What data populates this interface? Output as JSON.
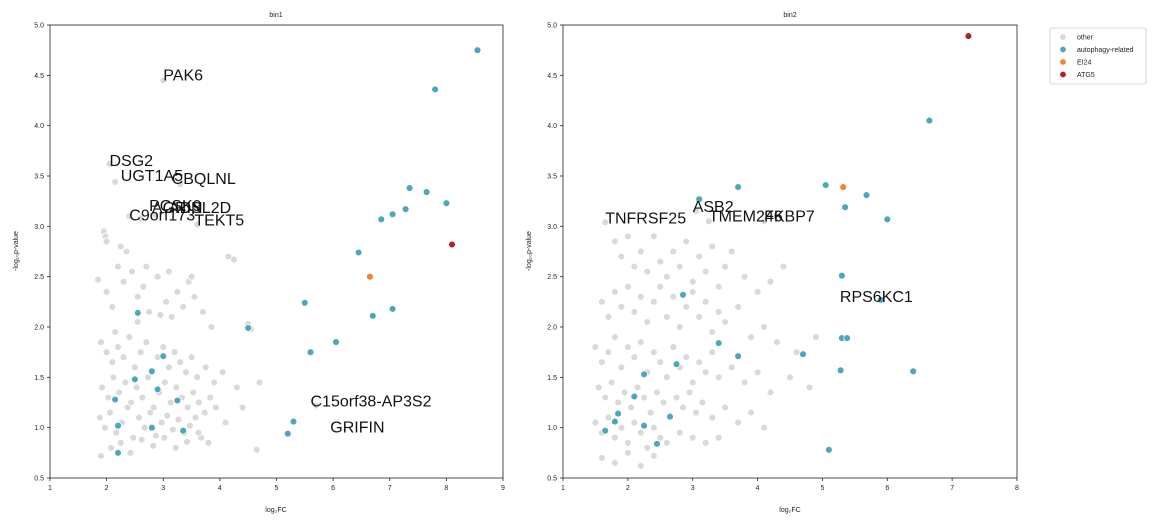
{
  "legend": {
    "entries": [
      {
        "label": "other",
        "color": "#d9d9d9"
      },
      {
        "label": "autophagy-related",
        "color": "#4ea6bd"
      },
      {
        "label": "EI24",
        "color": "#ee8534"
      },
      {
        "label": "ATG5",
        "color": "#b12222"
      }
    ]
  },
  "chart_data": [
    {
      "type": "scatter",
      "title": "bin1",
      "xlabel": "log₂FC",
      "ylabel": "-log₁₀p-value",
      "xlim": [
        1,
        9
      ],
      "ylim": [
        0.5,
        5.0
      ],
      "xticks": [
        1,
        2,
        3,
        4,
        5,
        6,
        7,
        8,
        9
      ],
      "yticks": [
        0.5,
        1.0,
        1.5,
        2.0,
        2.5,
        3.0,
        3.5,
        4.0,
        4.5,
        5.0
      ],
      "grid": false,
      "annotations": [
        {
          "text": "PAK6",
          "x": 3.0,
          "y": 4.45
        },
        {
          "text": "DSG2",
          "x": 2.05,
          "y": 3.6
        },
        {
          "text": "UGT1A5",
          "x": 2.25,
          "y": 3.45
        },
        {
          "text": "CBQLNL",
          "x": 3.15,
          "y": 3.42
        },
        {
          "text": "PCSK9",
          "x": 2.75,
          "y": 3.15
        },
        {
          "text": "AGRIN",
          "x": 2.8,
          "y": 3.13
        },
        {
          "text": "ADSL2D",
          "x": 3.1,
          "y": 3.13
        },
        {
          "text": "C9orf173",
          "x": 2.4,
          "y": 3.06
        },
        {
          "text": "TEKT5",
          "x": 3.55,
          "y": 3.01
        },
        {
          "text": "C15orf38-AP3S2",
          "x": 5.6,
          "y": 1.21
        },
        {
          "text": "GRIFIN",
          "x": 5.95,
          "y": 0.95
        }
      ],
      "series": [
        {
          "name": "other",
          "color": "#d9d9d9",
          "x": [
            3.0,
            2.05,
            2.15,
            2.4,
            2.85,
            3.3,
            1.95,
            1.98,
            2.25,
            2.6,
            3.6,
            4.15,
            4.25,
            4.5,
            4.55,
            5.7,
            1.85,
            2.0,
            2.1,
            2.2,
            2.3,
            2.45,
            2.55,
            2.65,
            2.75,
            2.9,
            3.05,
            3.15,
            3.25,
            3.35,
            3.45,
            3.55,
            3.7,
            3.85,
            1.9,
            2.0,
            2.1,
            2.2,
            2.3,
            2.4,
            2.5,
            2.6,
            2.7,
            2.8,
            2.9,
            3.0,
            3.1,
            3.2,
            3.3,
            3.4,
            3.5,
            3.6,
            3.75,
            3.9,
            4.05,
            4.3,
            4.7,
            1.92,
            2.03,
            2.12,
            2.22,
            2.33,
            2.43,
            2.53,
            2.63,
            2.73,
            2.83,
            2.93,
            3.03,
            3.13,
            3.23,
            3.33,
            3.43,
            3.53,
            3.63,
            3.73,
            3.83,
            3.93,
            1.88,
            1.97,
            2.06,
            2.17,
            2.27,
            2.37,
            2.47,
            2.57,
            2.67,
            2.77,
            2.87,
            2.97,
            3.07,
            3.17,
            3.27,
            3.37,
            3.47,
            3.57,
            3.67,
            4.1,
            4.4,
            4.65,
            1.9,
            2.08,
            2.25,
            2.42,
            2.62,
            2.82,
            3.02,
            3.22,
            3.42,
            3.62,
            3.8,
            2.0,
            2.35,
            2.7,
            3.1,
            3.5,
            2.15,
            2.55,
            2.95
          ],
          "y": [
            4.45,
            3.62,
            3.44,
            3.1,
            3.12,
            3.42,
            2.95,
            2.9,
            2.8,
            3.08,
            3.02,
            2.7,
            2.67,
            2.03,
            1.98,
            1.22,
            2.47,
            2.35,
            2.2,
            2.6,
            2.45,
            2.55,
            2.3,
            2.4,
            2.15,
            2.5,
            2.25,
            2.1,
            2.35,
            2.2,
            2.45,
            2.3,
            2.15,
            2.0,
            1.85,
            1.75,
            1.65,
            1.8,
            1.7,
            1.9,
            1.6,
            1.75,
            1.85,
            1.55,
            1.7,
            1.8,
            1.6,
            1.75,
            1.65,
            1.55,
            1.7,
            1.5,
            1.6,
            1.45,
            1.55,
            1.4,
            1.45,
            1.4,
            1.3,
            1.5,
            1.35,
            1.45,
            1.25,
            1.4,
            1.3,
            1.5,
            1.2,
            1.35,
            1.45,
            1.25,
            1.4,
            1.3,
            1.2,
            1.35,
            1.25,
            1.15,
            1.3,
            1.2,
            1.1,
            1.0,
            1.15,
            0.95,
            1.05,
            1.2,
            0.9,
            1.1,
            1.0,
            1.15,
            0.92,
            1.05,
            1.12,
            0.98,
            1.08,
            0.95,
            1.02,
            1.1,
            0.9,
            1.05,
            1.2,
            0.78,
            0.72,
            0.8,
            0.85,
            0.75,
            0.88,
            0.82,
            0.9,
            0.8,
            0.86,
            0.95,
            0.85,
            2.85,
            2.75,
            2.6,
            2.55,
            2.5,
            1.95,
            2.05,
            2.12
          ]
        },
        {
          "name": "autophagy-related",
          "color": "#4ea6bd",
          "x": [
            8.55,
            7.8,
            7.35,
            7.65,
            8.0,
            6.85,
            7.05,
            7.28,
            6.45,
            7.05,
            6.7,
            5.5,
            6.05,
            5.6,
            4.5,
            2.55,
            3.0,
            2.8,
            2.5,
            2.9,
            3.25,
            2.15,
            2.2,
            2.8,
            3.35,
            2.2,
            5.3,
            5.2
          ],
          "y": [
            4.75,
            4.36,
            3.38,
            3.34,
            3.23,
            3.07,
            3.12,
            3.17,
            2.74,
            2.18,
            2.11,
            2.24,
            1.85,
            1.75,
            1.99,
            2.14,
            1.71,
            1.56,
            1.48,
            1.38,
            1.27,
            1.28,
            1.02,
            1.0,
            0.97,
            0.75,
            1.06,
            0.94
          ]
        },
        {
          "name": "EI24",
          "color": "#ee8534",
          "x": [
            6.65
          ],
          "y": [
            2.5
          ]
        },
        {
          "name": "ATG5",
          "color": "#b12222",
          "x": [
            8.1
          ],
          "y": [
            2.82
          ]
        }
      ]
    },
    {
      "type": "scatter",
      "title": "bin2",
      "xlabel": "log₂FC",
      "ylabel": "-log₁₀p-value",
      "xlim": [
        1,
        8
      ],
      "ylim": [
        0.5,
        5.0
      ],
      "xticks": [
        1,
        2,
        3,
        4,
        5,
        6,
        7,
        8
      ],
      "yticks": [
        0.5,
        1.0,
        1.5,
        2.0,
        2.5,
        3.0,
        3.5,
        4.0,
        4.5,
        5.0
      ],
      "grid": false,
      "annotations": [
        {
          "text": "TNFRSF25",
          "x": 1.65,
          "y": 3.03
        },
        {
          "text": "ASB2",
          "x": 3.0,
          "y": 3.14
        },
        {
          "text": "TMEM246",
          "x": 3.25,
          "y": 3.05
        },
        {
          "text": "FKBP7",
          "x": 4.1,
          "y": 3.05
        },
        {
          "text": "RPS6KC1",
          "x": 5.27,
          "y": 2.25
        }
      ],
      "series": [
        {
          "name": "other",
          "color": "#d9d9d9",
          "x": [
            1.65,
            3.05,
            3.25,
            4.1,
            5.9,
            1.8,
            1.9,
            2.0,
            2.1,
            2.2,
            2.3,
            2.4,
            2.5,
            2.6,
            2.7,
            2.8,
            2.9,
            3.0,
            3.1,
            3.2,
            3.3,
            3.4,
            3.5,
            3.6,
            3.8,
            4.0,
            4.2,
            4.4,
            1.6,
            1.7,
            1.8,
            1.9,
            2.0,
            2.1,
            2.2,
            2.3,
            2.4,
            2.5,
            2.6,
            2.7,
            2.8,
            2.9,
            3.0,
            3.1,
            3.2,
            3.3,
            3.4,
            3.5,
            3.7,
            3.9,
            4.1,
            4.3,
            4.6,
            4.9,
            1.5,
            1.6,
            1.7,
            1.8,
            1.9,
            2.0,
            2.1,
            2.2,
            2.3,
            2.4,
            2.5,
            2.6,
            2.7,
            2.8,
            2.9,
            3.0,
            3.1,
            3.2,
            3.3,
            3.4,
            3.6,
            3.8,
            4.0,
            4.2,
            4.5,
            4.8,
            1.55,
            1.65,
            1.75,
            1.85,
            1.95,
            2.05,
            2.15,
            2.25,
            2.35,
            2.45,
            2.55,
            2.65,
            2.75,
            2.85,
            2.95,
            3.05,
            3.15,
            3.3,
            3.5,
            3.7,
            3.9,
            4.1,
            1.5,
            1.6,
            1.7,
            1.8,
            1.9,
            2.0,
            2.1,
            2.2,
            2.3,
            2.4,
            2.5,
            2.6,
            2.8,
            3.0,
            3.2,
            3.4,
            1.6,
            1.8,
            2.0,
            2.2,
            2.4
          ],
          "y": [
            3.04,
            3.15,
            3.05,
            3.05,
            2.27,
            2.85,
            2.7,
            2.9,
            2.6,
            2.75,
            2.55,
            2.9,
            2.65,
            2.5,
            2.75,
            2.6,
            2.85,
            2.45,
            2.7,
            2.55,
            2.8,
            2.4,
            2.6,
            2.75,
            2.5,
            2.35,
            2.45,
            2.6,
            2.25,
            2.1,
            2.35,
            2.2,
            2.4,
            2.15,
            2.3,
            2.05,
            2.25,
            2.4,
            2.1,
            2.3,
            2.0,
            2.2,
            2.35,
            2.1,
            2.25,
            1.95,
            2.15,
            2.05,
            2.2,
            1.9,
            2.0,
            1.85,
            1.75,
            1.9,
            1.8,
            1.65,
            1.75,
            1.9,
            1.6,
            1.8,
            1.7,
            1.85,
            1.55,
            1.75,
            1.65,
            1.5,
            1.8,
            1.6,
            1.7,
            1.45,
            1.65,
            1.55,
            1.75,
            1.5,
            1.6,
            1.45,
            1.55,
            1.35,
            1.5,
            1.4,
            1.4,
            1.3,
            1.45,
            1.25,
            1.35,
            1.2,
            1.4,
            1.3,
            1.15,
            1.35,
            1.25,
            1.1,
            1.3,
            1.2,
            1.35,
            1.15,
            1.25,
            1.1,
            1.2,
            1.05,
            1.15,
            1.0,
            1.05,
            0.95,
            1.1,
            0.9,
            1.0,
            0.85,
            1.05,
            0.95,
            0.8,
            1.0,
            0.9,
            0.85,
            0.95,
            0.9,
            0.85,
            0.9,
            0.7,
            0.65,
            0.75,
            0.62,
            0.72
          ]
        },
        {
          "name": "autophagy-related",
          "color": "#4ea6bd",
          "x": [
            6.65,
            3.7,
            5.05,
            5.68,
            3.1,
            5.35,
            6.0,
            5.3,
            2.85,
            5.9,
            3.4,
            5.3,
            5.38,
            3.7,
            4.7,
            2.75,
            2.25,
            6.4,
            5.28,
            2.1,
            1.85,
            2.65,
            1.8,
            2.25,
            1.65,
            2.45,
            5.1
          ],
          "y": [
            4.05,
            3.39,
            3.41,
            3.31,
            3.27,
            3.19,
            3.07,
            2.51,
            2.32,
            2.27,
            1.84,
            1.89,
            1.89,
            1.71,
            1.73,
            1.63,
            1.53,
            1.56,
            1.57,
            1.31,
            1.14,
            1.11,
            1.06,
            1.02,
            0.97,
            0.84,
            0.78
          ]
        },
        {
          "name": "EI24",
          "color": "#ee8534",
          "x": [
            5.32
          ],
          "y": [
            3.39
          ]
        },
        {
          "name": "ATG5",
          "color": "#b12222",
          "x": [
            7.25
          ],
          "y": [
            4.89
          ]
        }
      ]
    }
  ]
}
